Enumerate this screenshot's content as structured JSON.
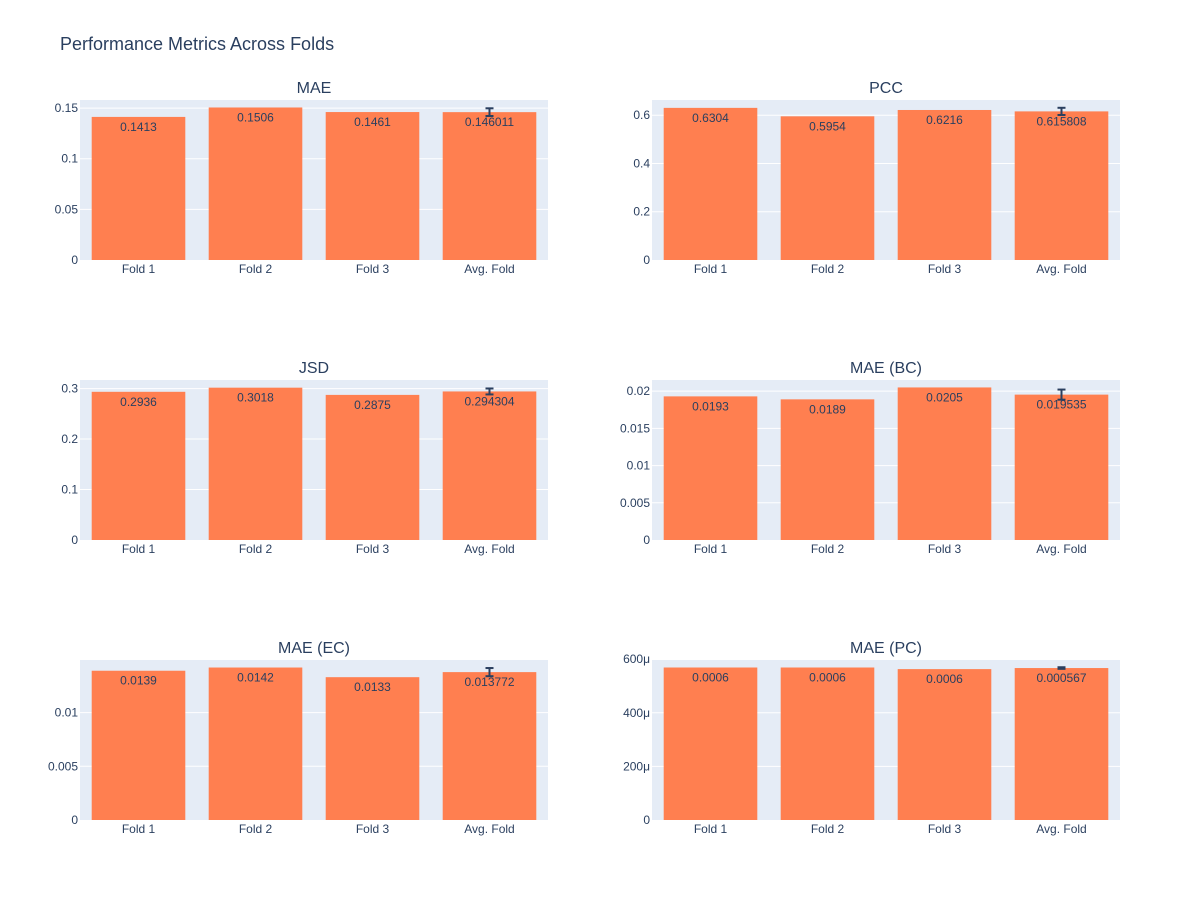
{
  "figure": {
    "title": "Performance Metrics Across Folds"
  },
  "colors": {
    "bar": "#ff7f50",
    "plot_bg": "#e5ecf6",
    "grid": "#ffffff",
    "text": "#2a3f5f",
    "error_bar": "#2a3f5f"
  },
  "chart_data": [
    {
      "type": "bar",
      "title": "MAE",
      "categories": [
        "Fold 1",
        "Fold 2",
        "Fold 3",
        "Avg. Fold"
      ],
      "values": [
        0.1413,
        0.1506,
        0.1461,
        0.146011
      ],
      "labels": [
        "0.1413",
        "0.1506",
        "0.1461",
        "0.146011"
      ],
      "error": [
        null,
        null,
        null,
        0.0038
      ],
      "ylim": [
        0,
        0.158
      ],
      "yticks": [
        0,
        0.05,
        0.1,
        0.15
      ],
      "ytick_labels": [
        "0",
        "0.05",
        "0.1",
        "0.15"
      ],
      "grid": true
    },
    {
      "type": "bar",
      "title": "PCC",
      "categories": [
        "Fold 1",
        "Fold 2",
        "Fold 3",
        "Avg. Fold"
      ],
      "values": [
        0.6304,
        0.5954,
        0.6216,
        0.615808
      ],
      "labels": [
        "0.6304",
        "0.5954",
        "0.6216",
        "0.615808"
      ],
      "error": [
        null,
        null,
        null,
        0.0149
      ],
      "ylim": [
        0,
        0.663
      ],
      "yticks": [
        0,
        0.2,
        0.4,
        0.6
      ],
      "ytick_labels": [
        "0",
        "0.2",
        "0.4",
        "0.6"
      ],
      "grid": true
    },
    {
      "type": "bar",
      "title": "JSD",
      "categories": [
        "Fold 1",
        "Fold 2",
        "Fold 3",
        "Avg. Fold"
      ],
      "values": [
        0.2936,
        0.3018,
        0.2875,
        0.294304
      ],
      "labels": [
        "0.2936",
        "0.3018",
        "0.2875",
        "0.294304"
      ],
      "error": [
        null,
        null,
        null,
        0.0059
      ],
      "ylim": [
        0,
        0.317
      ],
      "yticks": [
        0,
        0.1,
        0.2,
        0.3
      ],
      "ytick_labels": [
        "0",
        "0.1",
        "0.2",
        "0.3"
      ],
      "grid": true
    },
    {
      "type": "bar",
      "title": "MAE (BC)",
      "categories": [
        "Fold 1",
        "Fold 2",
        "Fold 3",
        "Avg. Fold"
      ],
      "values": [
        0.0193,
        0.0189,
        0.0205,
        0.019535
      ],
      "labels": [
        "0.0193",
        "0.0189",
        "0.0205",
        "0.019535"
      ],
      "error": [
        null,
        null,
        null,
        0.00068
      ],
      "ylim": [
        0,
        0.0215
      ],
      "yticks": [
        0,
        0.005,
        0.01,
        0.015,
        0.02
      ],
      "ytick_labels": [
        "0",
        "0.005",
        "0.01",
        "0.015",
        "0.02"
      ],
      "grid": true
    },
    {
      "type": "bar",
      "title": "MAE (EC)",
      "categories": [
        "Fold 1",
        "Fold 2",
        "Fold 3",
        "Avg. Fold"
      ],
      "values": [
        0.0139,
        0.0142,
        0.0133,
        0.013772
      ],
      "labels": [
        "0.0139",
        "0.0142",
        "0.0133",
        "0.013772"
      ],
      "error": [
        null,
        null,
        null,
        0.00038
      ],
      "ylim": [
        0,
        0.0149
      ],
      "yticks": [
        0,
        0.005,
        0.01
      ],
      "ytick_labels": [
        "0",
        "0.005",
        "0.01"
      ],
      "grid": true
    },
    {
      "type": "bar",
      "title": "MAE (PC)",
      "categories": [
        "Fold 1",
        "Fold 2",
        "Fold 3",
        "Avg. Fold"
      ],
      "values": [
        0.000569,
        0.000569,
        0.000563,
        0.000567
      ],
      "labels": [
        "0.0006",
        "0.0006",
        "0.0006",
        "0.000567"
      ],
      "error": [
        null,
        null,
        null,
        3e-06
      ],
      "ylim": [
        0,
        0.000597
      ],
      "yticks": [
        0,
        0.0002,
        0.0004,
        0.0006
      ],
      "ytick_labels": [
        "0",
        "200μ",
        "400μ",
        "600μ"
      ],
      "grid": true
    }
  ]
}
